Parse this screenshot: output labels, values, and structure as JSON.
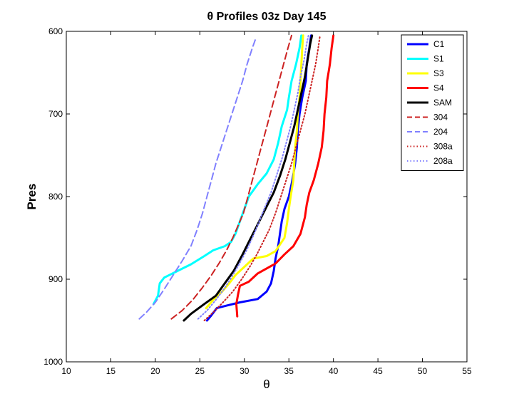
{
  "chart_data": {
    "type": "line",
    "title": "θ Profiles 03z Day 145",
    "xlabel": "θ",
    "ylabel": "Pres",
    "xlim": [
      10,
      55
    ],
    "ylim": [
      600,
      1000
    ],
    "y_reversed": true,
    "grid": false,
    "legend_position": "top-right",
    "xticks": [
      "10",
      "15",
      "20",
      "25",
      "30",
      "35",
      "40",
      "45",
      "50",
      "55"
    ],
    "yticks": [
      "600",
      "700",
      "800",
      "900",
      "1000"
    ],
    "series": [
      {
        "name": "C1",
        "color": "#0000ff",
        "style": "solid",
        "points": [
          [
            25.8,
            950
          ],
          [
            26.2,
            945
          ],
          [
            26.9,
            935
          ],
          [
            28.0,
            932
          ],
          [
            29.5,
            928
          ],
          [
            31.5,
            924
          ],
          [
            32.5,
            915
          ],
          [
            33.0,
            905
          ],
          [
            33.3,
            890
          ],
          [
            33.5,
            875
          ],
          [
            33.8,
            860
          ],
          [
            34.0,
            845
          ],
          [
            34.2,
            830
          ],
          [
            34.5,
            815
          ],
          [
            35.0,
            800
          ],
          [
            35.4,
            780
          ],
          [
            35.7,
            760
          ],
          [
            35.9,
            740
          ],
          [
            36.0,
            720
          ],
          [
            36.2,
            700
          ],
          [
            36.5,
            680
          ],
          [
            36.9,
            660
          ],
          [
            37.0,
            640
          ],
          [
            37.3,
            620
          ],
          [
            37.5,
            605
          ]
        ]
      },
      {
        "name": "S1",
        "color": "#00ffff",
        "style": "solid",
        "points": [
          [
            19.8,
            930
          ],
          [
            20.3,
            920
          ],
          [
            20.5,
            905
          ],
          [
            21.0,
            898
          ],
          [
            22.5,
            890
          ],
          [
            24.0,
            882
          ],
          [
            25.5,
            872
          ],
          [
            26.5,
            865
          ],
          [
            27.8,
            860
          ],
          [
            28.5,
            855
          ],
          [
            29.0,
            845
          ],
          [
            29.5,
            830
          ],
          [
            30.0,
            815
          ],
          [
            30.5,
            800
          ],
          [
            31.5,
            785
          ],
          [
            32.5,
            772
          ],
          [
            33.3,
            755
          ],
          [
            33.8,
            735
          ],
          [
            34.2,
            715
          ],
          [
            34.8,
            695
          ],
          [
            35.0,
            680
          ],
          [
            35.3,
            660
          ],
          [
            35.8,
            640
          ],
          [
            36.2,
            620
          ],
          [
            36.4,
            605
          ]
        ]
      },
      {
        "name": "S3",
        "color": "#ffff00",
        "style": "solid",
        "points": [
          [
            25.7,
            935
          ],
          [
            26.5,
            925
          ],
          [
            27.5,
            915
          ],
          [
            28.3,
            905
          ],
          [
            29.0,
            895
          ],
          [
            30.0,
            885
          ],
          [
            31.0,
            875
          ],
          [
            32.5,
            872
          ],
          [
            33.5,
            866
          ],
          [
            34.0,
            858
          ],
          [
            34.5,
            850
          ],
          [
            34.8,
            832
          ],
          [
            35.0,
            815
          ],
          [
            35.2,
            800
          ],
          [
            35.5,
            780
          ],
          [
            35.6,
            760
          ],
          [
            35.7,
            740
          ],
          [
            35.9,
            720
          ],
          [
            36.0,
            700
          ],
          [
            36.2,
            680
          ],
          [
            36.3,
            660
          ],
          [
            36.4,
            640
          ],
          [
            36.5,
            620
          ],
          [
            36.6,
            605
          ]
        ]
      },
      {
        "name": "S4",
        "color": "#ff0000",
        "style": "solid",
        "points": [
          [
            29.2,
            945
          ],
          [
            29.1,
            930
          ],
          [
            29.3,
            918
          ],
          [
            29.5,
            908
          ],
          [
            30.5,
            903
          ],
          [
            31.5,
            893
          ],
          [
            33.5,
            881
          ],
          [
            34.5,
            870
          ],
          [
            35.5,
            860
          ],
          [
            36.3,
            845
          ],
          [
            36.8,
            825
          ],
          [
            37.0,
            810
          ],
          [
            37.3,
            795
          ],
          [
            37.8,
            780
          ],
          [
            38.3,
            760
          ],
          [
            38.7,
            740
          ],
          [
            38.9,
            720
          ],
          [
            39.0,
            700
          ],
          [
            39.2,
            680
          ],
          [
            39.3,
            660
          ],
          [
            39.6,
            640
          ],
          [
            39.8,
            620
          ],
          [
            40.0,
            605
          ]
        ]
      },
      {
        "name": "SAM",
        "color": "#000000",
        "style": "solid",
        "points": [
          [
            23.2,
            950
          ],
          [
            24.0,
            942
          ],
          [
            25.5,
            930
          ],
          [
            26.8,
            920
          ],
          [
            27.8,
            905
          ],
          [
            28.8,
            890
          ],
          [
            29.8,
            870
          ],
          [
            30.5,
            855
          ],
          [
            31.2,
            840
          ],
          [
            31.9,
            825
          ],
          [
            32.6,
            810
          ],
          [
            33.3,
            795
          ],
          [
            34.0,
            775
          ],
          [
            34.6,
            755
          ],
          [
            35.1,
            735
          ],
          [
            35.6,
            715
          ],
          [
            36.0,
            695
          ],
          [
            36.4,
            675
          ],
          [
            36.8,
            655
          ],
          [
            37.1,
            635
          ],
          [
            37.4,
            615
          ],
          [
            37.6,
            605
          ]
        ]
      },
      {
        "name": "304",
        "color": "#cc2222",
        "style": "dashed",
        "points": [
          [
            21.8,
            948
          ],
          [
            23.0,
            938
          ],
          [
            24.2,
            925
          ],
          [
            25.3,
            910
          ],
          [
            26.3,
            895
          ],
          [
            27.2,
            880
          ],
          [
            28.0,
            865
          ],
          [
            28.7,
            850
          ],
          [
            29.3,
            835
          ],
          [
            29.9,
            820
          ],
          [
            30.4,
            800
          ],
          [
            30.9,
            780
          ],
          [
            31.4,
            760
          ],
          [
            31.9,
            740
          ],
          [
            32.4,
            720
          ],
          [
            32.9,
            700
          ],
          [
            33.4,
            680
          ],
          [
            33.9,
            660
          ],
          [
            34.4,
            640
          ],
          [
            34.9,
            620
          ],
          [
            35.3,
            605
          ]
        ]
      },
      {
        "name": "204",
        "color": "#8080ff",
        "style": "dashed",
        "points": [
          [
            18.2,
            948
          ],
          [
            19.0,
            940
          ],
          [
            20.0,
            928
          ],
          [
            21.0,
            912
          ],
          [
            22.0,
            895
          ],
          [
            23.0,
            878
          ],
          [
            24.0,
            860
          ],
          [
            24.7,
            840
          ],
          [
            25.3,
            820
          ],
          [
            25.8,
            800
          ],
          [
            26.3,
            780
          ],
          [
            26.8,
            760
          ],
          [
            27.4,
            740
          ],
          [
            28.0,
            720
          ],
          [
            28.6,
            700
          ],
          [
            29.2,
            680
          ],
          [
            29.8,
            660
          ],
          [
            30.3,
            640
          ],
          [
            30.9,
            620
          ],
          [
            31.3,
            608
          ]
        ]
      },
      {
        "name": "308a",
        "color": "#cc2222",
        "style": "dotted",
        "points": [
          [
            25.5,
            950
          ],
          [
            26.5,
            940
          ],
          [
            27.6,
            928
          ],
          [
            28.7,
            915
          ],
          [
            29.7,
            900
          ],
          [
            30.6,
            885
          ],
          [
            31.4,
            870
          ],
          [
            32.1,
            855
          ],
          [
            32.8,
            840
          ],
          [
            33.5,
            820
          ],
          [
            34.1,
            800
          ],
          [
            34.7,
            780
          ],
          [
            35.3,
            760
          ],
          [
            35.8,
            740
          ],
          [
            36.3,
            720
          ],
          [
            36.8,
            700
          ],
          [
            37.2,
            680
          ],
          [
            37.6,
            660
          ],
          [
            38.0,
            640
          ],
          [
            38.3,
            620
          ],
          [
            38.5,
            605
          ]
        ]
      },
      {
        "name": "208a",
        "color": "#8080ff",
        "style": "dotted",
        "points": [
          [
            24.8,
            948
          ],
          [
            25.8,
            938
          ],
          [
            26.8,
            925
          ],
          [
            27.7,
            912
          ],
          [
            28.6,
            897
          ],
          [
            29.4,
            882
          ],
          [
            30.2,
            866
          ],
          [
            30.9,
            850
          ],
          [
            31.6,
            832
          ],
          [
            32.3,
            813
          ],
          [
            33.0,
            795
          ],
          [
            33.6,
            775
          ],
          [
            34.2,
            755
          ],
          [
            34.7,
            735
          ],
          [
            35.2,
            715
          ],
          [
            35.6,
            695
          ],
          [
            36.0,
            675
          ],
          [
            36.3,
            655
          ],
          [
            36.7,
            635
          ],
          [
            37.0,
            615
          ],
          [
            37.2,
            605
          ]
        ]
      }
    ]
  }
}
